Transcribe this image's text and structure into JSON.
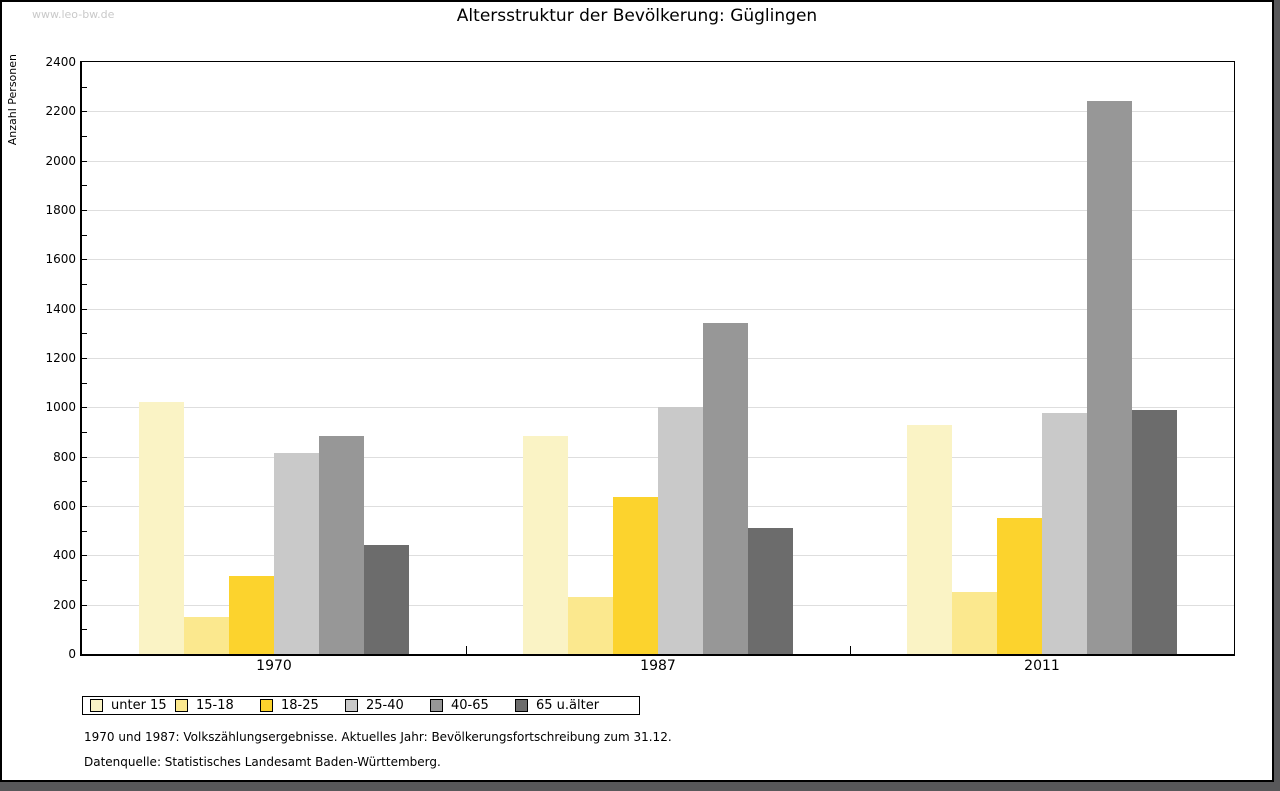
{
  "watermark": "www.leo-bw.de",
  "chart_data": {
    "type": "bar",
    "title": "Altersstruktur der Bevölkerung: Güglingen",
    "ylabel": "Anzahl Personen",
    "xlabel": "",
    "categories": [
      "1970",
      "1987",
      "2011"
    ],
    "series": [
      {
        "name": "unter 15",
        "color": "#FAF3C5",
        "values": [
          1020,
          885,
          930
        ]
      },
      {
        "name": "15-18",
        "color": "#FBE88E",
        "values": [
          150,
          230,
          250
        ]
      },
      {
        "name": "18-25",
        "color": "#FCD32D",
        "values": [
          315,
          635,
          550
        ]
      },
      {
        "name": "25-40",
        "color": "#C9C9C9",
        "values": [
          815,
          1000,
          975
        ]
      },
      {
        "name": "40-65",
        "color": "#979797",
        "values": [
          885,
          1340,
          2240
        ]
      },
      {
        "name": "65 u.älter",
        "color": "#6C6C6C",
        "values": [
          440,
          510,
          990
        ]
      }
    ],
    "ylim": [
      0,
      2400
    ],
    "ytick_step": 200,
    "ytick_minor_step": 100,
    "grid": "horizontal-major",
    "legend_position": "bottom-left"
  },
  "footer": {
    "line1": "1970 und 1987: Volkszählungsergebnisse. Aktuelles Jahr: Bevölkerungsfortschreibung zum 31.12.",
    "line2": "Datenquelle: Statistisches Landesamt Baden-Württemberg."
  },
  "colors": {
    "gridline": "#DEDEDE",
    "watermark_text": "#C9C9C9",
    "frame": "#000000",
    "page_background": "#58585A"
  }
}
